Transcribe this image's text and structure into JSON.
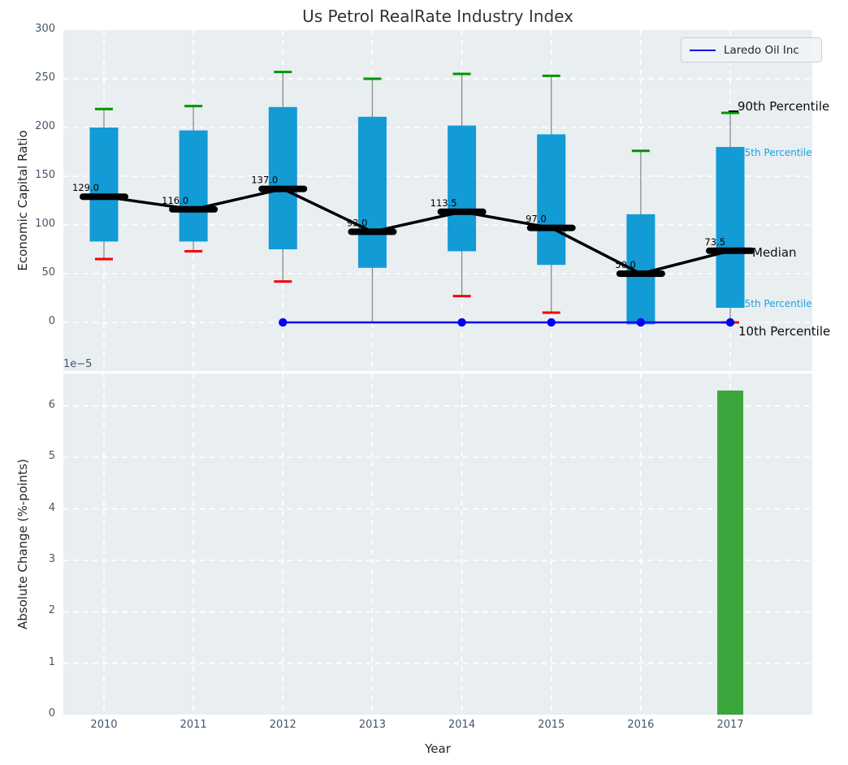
{
  "title": "Us Petrol RealRate Industry Index",
  "legend": {
    "label": "Laredo Oil Inc"
  },
  "annotations": {
    "p90": "90th Percentile",
    "p75": "75th Percentile",
    "median": "Median",
    "p25": "25th Percentile",
    "p10": "10th Percentile"
  },
  "style": {
    "box_color": "#129bd5",
    "whisker_color": "#8a8a8a",
    "cap_top_color": "#009500",
    "cap_bottom_color": "#f50000",
    "median_color": "#000000",
    "median_line_color": "#000000",
    "series_color": "#0202f0",
    "bar_color": "#3ca53c",
    "grid_color": "#ffffff",
    "axes_bg": "#e9eef1",
    "cyan_label_color": "#1ba3dd"
  },
  "chart_data": [
    {
      "type": "boxplot+line",
      "title": "Us Petrol RealRate Industry Index",
      "xlabel": "Year",
      "ylabel": "Economic Capital Ratio",
      "ylim": [
        -50,
        300
      ],
      "yticks": [
        0,
        50,
        100,
        150,
        200,
        250,
        300
      ],
      "grid": true,
      "categories": [
        2010,
        2011,
        2012,
        2013,
        2014,
        2015,
        2016,
        2017
      ],
      "boxes": [
        {
          "year": 2010,
          "p10": 65,
          "q25": 83,
          "median": 129.0,
          "q75": 200,
          "p90": 219,
          "p10_cap": true
        },
        {
          "year": 2011,
          "p10": 73,
          "q25": 83,
          "median": 116.0,
          "q75": 197,
          "p90": 222,
          "p10_cap": true
        },
        {
          "year": 2012,
          "p10": 42,
          "q25": 75,
          "median": 137.0,
          "q75": 221,
          "p90": 257,
          "p10_cap": true
        },
        {
          "year": 2013,
          "p10": 0,
          "q25": 56,
          "median": 93.0,
          "q75": 211,
          "p90": 250,
          "p10_cap": false
        },
        {
          "year": 2014,
          "p10": 27,
          "q25": 73,
          "median": 113.5,
          "q75": 202,
          "p90": 255,
          "p10_cap": true
        },
        {
          "year": 2015,
          "p10": 10,
          "q25": 59,
          "median": 97.0,
          "q75": 193,
          "p90": 253,
          "p10_cap": true
        },
        {
          "year": 2016,
          "p10": null,
          "q25": -2,
          "median": 50.0,
          "q75": 111,
          "p90": 176,
          "p10_cap": false
        },
        {
          "year": 2017,
          "p10": 0,
          "q25": 15,
          "median": 73.5,
          "q75": 180,
          "p90": 215,
          "p10_cap": true
        }
      ],
      "median_labels": [
        "129.0",
        "116.0",
        "137.0",
        "93.0",
        "113.5",
        "97.0",
        "50.0",
        "73.5"
      ],
      "series": [
        {
          "name": "Laredo Oil Inc",
          "x": [
            2012,
            2013,
            2014,
            2015,
            2016,
            2017
          ],
          "y": [
            0,
            0,
            0,
            0,
            0,
            0
          ],
          "marker_years": [
            2012,
            2014,
            2015,
            2016,
            2017
          ]
        }
      ],
      "legend_position": "upper right"
    },
    {
      "type": "bar",
      "xlabel": "Year",
      "ylabel": "Absolute Change (%-points)",
      "offset_label": "1e−5",
      "ylim": [
        0,
        6.63e-05
      ],
      "yticks": [
        0,
        1,
        2,
        3,
        4,
        5,
        6
      ],
      "ytick_scale": 1e-05,
      "grid": true,
      "categories": [
        2010,
        2011,
        2012,
        2013,
        2014,
        2015,
        2016,
        2017
      ],
      "values": [
        null,
        null,
        null,
        null,
        null,
        null,
        null,
        6.3e-05
      ]
    }
  ]
}
